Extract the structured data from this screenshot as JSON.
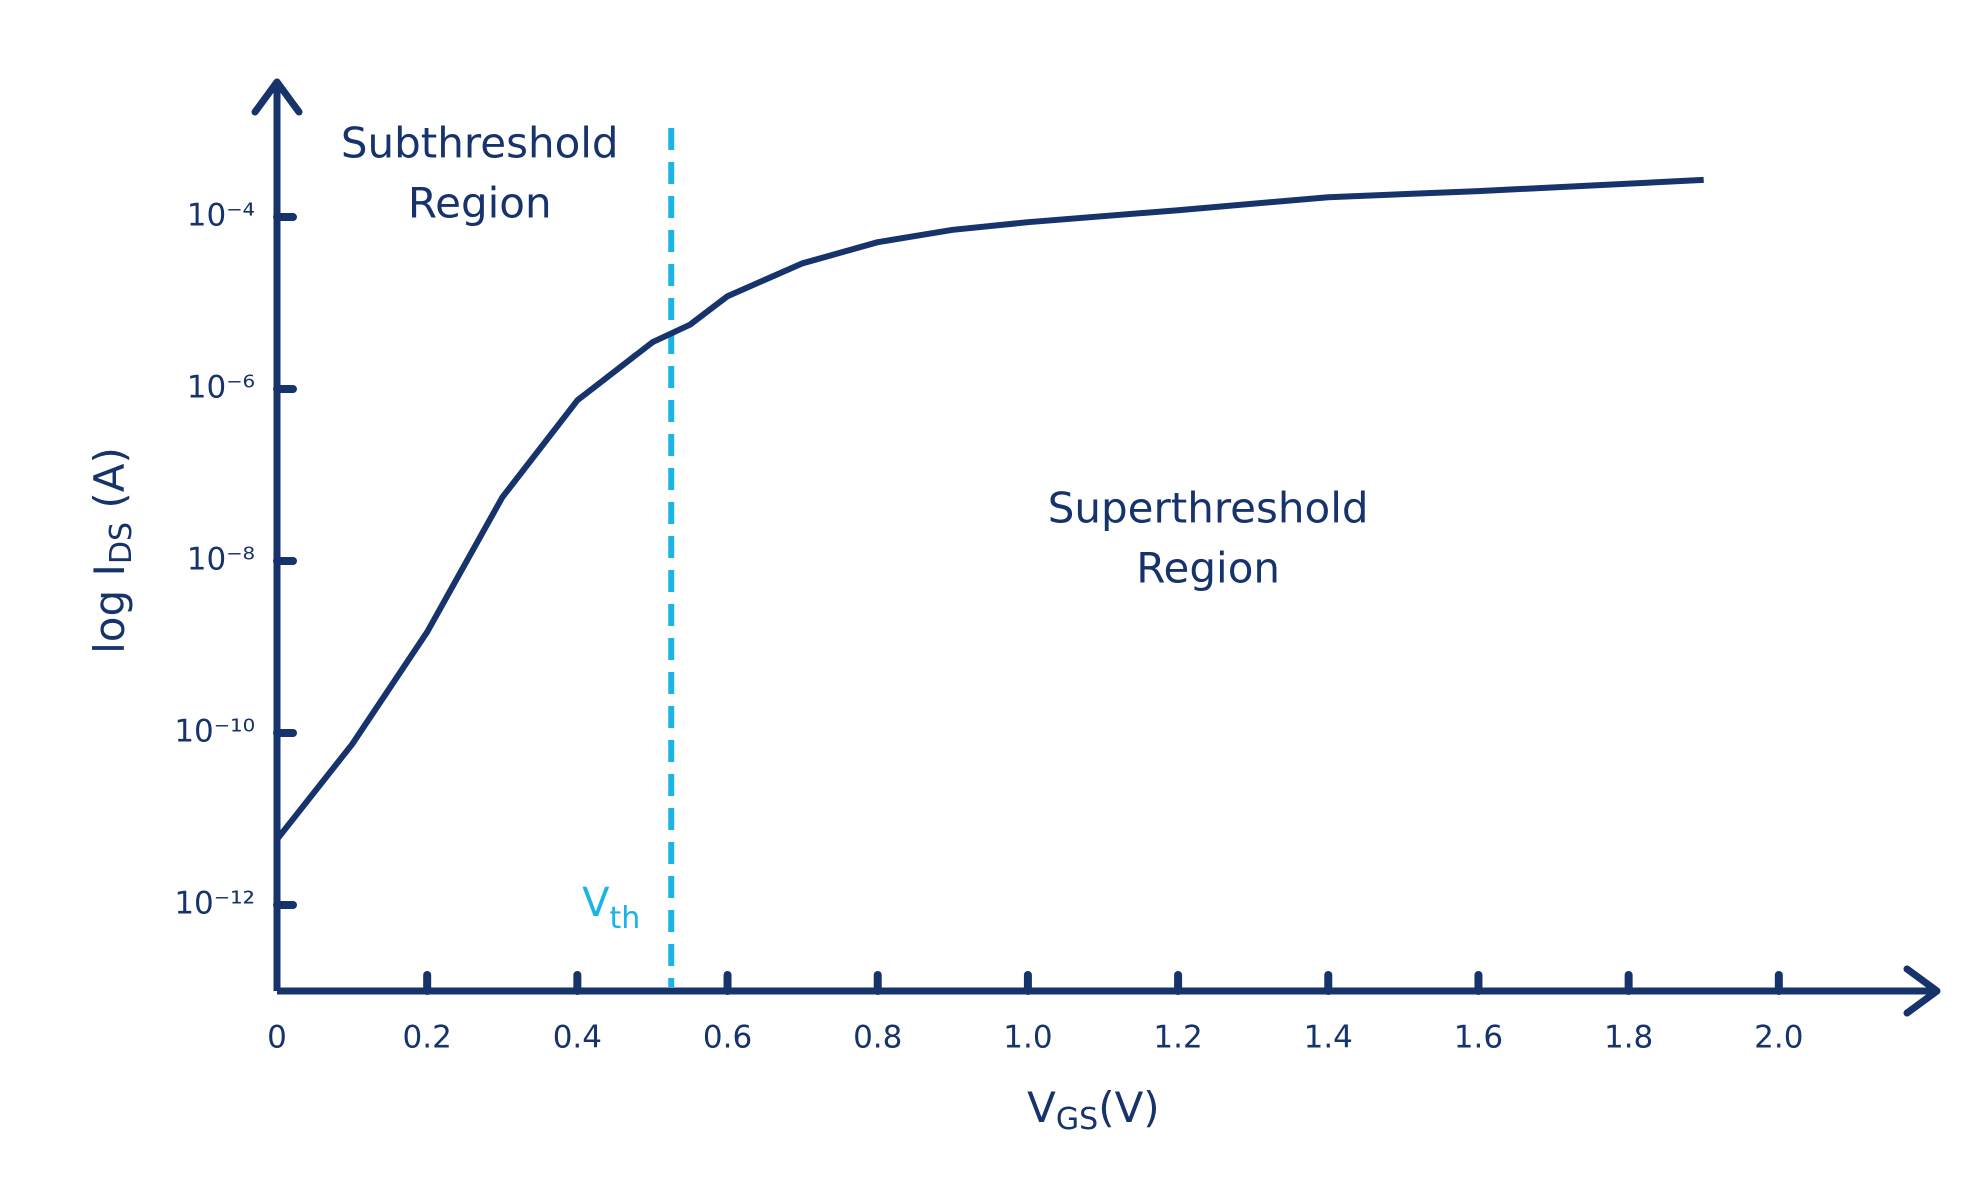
{
  "chart_data": {
    "type": "line",
    "log_y": true,
    "color": "#16336b",
    "x": [
      0,
      0.1,
      0.2,
      0.3,
      0.4,
      0.5,
      0.55,
      0.6,
      0.7,
      0.8,
      0.9,
      1.0,
      1.2,
      1.4,
      1.6,
      1.9
    ],
    "values": [
      5.8e-12,
      7.4e-11,
      1.5e-09,
      5.5e-08,
      7.4e-07,
      3.5e-06,
      5.6e-06,
      1.2e-05,
      2.9e-05,
      5.1e-05,
      7.1e-05,
      8.7e-05,
      0.00012,
      0.00017,
      0.0002,
      0.00027
    ],
    "xlim": [
      0,
      2.2
    ],
    "ylim": [
      1e-13,
      0.003
    ],
    "xticks": [
      0,
      0.2,
      0.4,
      0.6,
      0.8,
      {
        "value": 1,
        "label": "1.0"
      },
      1.2,
      1.4,
      1.6,
      1.8,
      {
        "value": 2,
        "label": "2.0"
      }
    ],
    "yticks": [
      {
        "value": 1e-12,
        "label": "10⁻¹²"
      },
      {
        "value": 1e-10,
        "label": "10⁻¹⁰"
      },
      {
        "value": 1e-08,
        "label": "10⁻⁸"
      },
      {
        "value": 1e-06,
        "label": "10⁻⁶"
      },
      {
        "value": 0.0001,
        "label": "10⁻⁴"
      }
    ],
    "xlabel": {
      "main": "V",
      "sub": "GS",
      "tail": "(V)"
    },
    "ylabel": {
      "main": "log I",
      "sub": "DS",
      "tail": " (A)"
    },
    "threshold": {
      "x": 0.525,
      "color": "#1ab4e6",
      "main": "V",
      "sub": "th"
    },
    "annotations": [
      {
        "lines": [
          "Subthreshold",
          "Region"
        ],
        "x": 0.27,
        "y": 0.0003
      },
      {
        "lines": [
          "Superthreshold",
          "Region"
        ],
        "x": 1.24,
        "y": 1.7e-08
      }
    ]
  }
}
